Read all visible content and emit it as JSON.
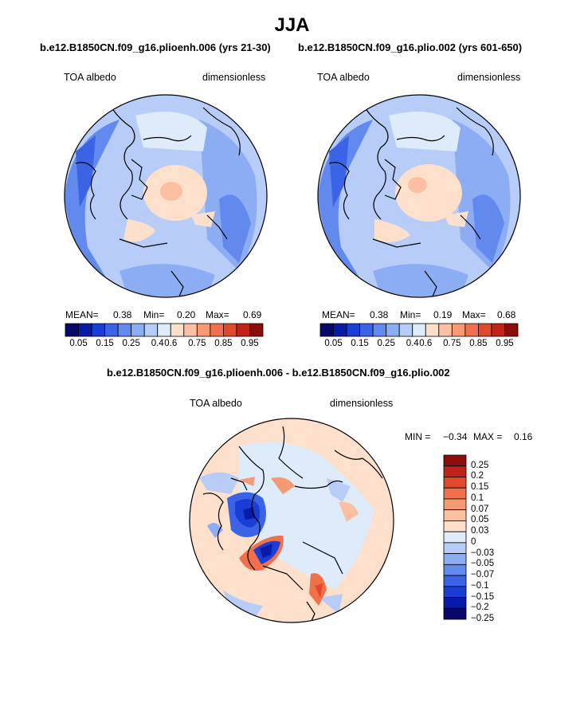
{
  "title": "JJA",
  "colors": {
    "seq": [
      "#08086b",
      "#0a1aa8",
      "#1a3dd6",
      "#3a63e6",
      "#6189ee",
      "#8cacf4",
      "#b7cdf8",
      "#deebfb",
      "#fde0cc",
      "#fbc0a2",
      "#f79a74",
      "#f0704c",
      "#e0482b",
      "#c02418",
      "#8a0c0b"
    ],
    "diff": [
      "#08086b",
      "#0a1aa8",
      "#1a3dd6",
      "#3a63e6",
      "#6189ee",
      "#8cacf4",
      "#b7cdf8",
      "#deebfb",
      "#fde0cc",
      "#fbc0a2",
      "#f79a74",
      "#f0704c",
      "#e0482b",
      "#c02418",
      "#8a0c0b"
    ]
  },
  "chart_data": [
    {
      "type": "heatmap",
      "subtitle": "b.e12.B1850CN.f09_g16.plioenh.006 (yrs 21-30)",
      "left_label": "TOA albedo",
      "right_label": "dimensionless",
      "stats": {
        "mean_label": "MEAN=",
        "mean": "0.38",
        "min_label": "Min=",
        "min": "0.20",
        "max_label": "Max=",
        "max": "0.69"
      },
      "colorbar_ticks": [
        "0.05",
        "0.15",
        "0.25",
        "0.4",
        "0.6",
        "0.75",
        "0.85",
        "0.95"
      ]
    },
    {
      "type": "heatmap",
      "subtitle": "b.e12.B1850CN.f09_g16.plio.002 (yrs 601-650)",
      "left_label": "TOA albedo",
      "right_label": "dimensionless",
      "stats": {
        "mean_label": "MEAN=",
        "mean": "0.38",
        "min_label": "Min=",
        "min": "0.19",
        "max_label": "Max=",
        "max": "0.68"
      },
      "colorbar_ticks": [
        "0.05",
        "0.15",
        "0.25",
        "0.4",
        "0.6",
        "0.75",
        "0.85",
        "0.95"
      ]
    },
    {
      "type": "heatmap",
      "subtitle": "b.e12.B1850CN.f09_g16.plioenh.006 - b.e12.B1850CN.f09_g16.plio.002",
      "left_label": "TOA albedo",
      "right_label": "dimensionless",
      "stats": {
        "min_label": "MIN =",
        "min": "−0.34",
        "max_label": "MAX =",
        "max": "0.16"
      },
      "colorbar_ticks": [
        "0.25",
        "0.2",
        "0.15",
        "0.1",
        "0.07",
        "0.05",
        "0.03",
        "0",
        "−0.03",
        "−0.05",
        "−0.07",
        "−0.1",
        "−0.15",
        "−0.2",
        "−0.25"
      ]
    }
  ]
}
